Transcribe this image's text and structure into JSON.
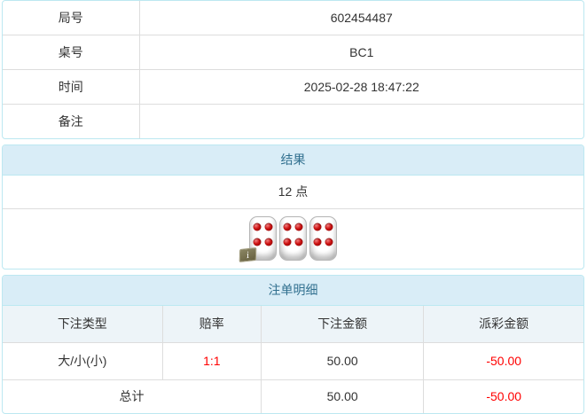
{
  "info_table": {
    "rows": [
      {
        "label": "局号",
        "value": "602454487"
      },
      {
        "label": "桌号",
        "value": "BC1"
      },
      {
        "label": "时间",
        "value": "2025-02-28 18:47:22"
      },
      {
        "label": "备注",
        "value": ""
      }
    ]
  },
  "result_panel": {
    "title": "结果",
    "points": "12 点",
    "dice": [
      4,
      4,
      4
    ],
    "info_badge": "i"
  },
  "bets_panel": {
    "title": "注单明细",
    "columns": [
      "下注类型",
      "赔率",
      "下注金额",
      "派彩金额"
    ],
    "rows": [
      {
        "type": "大/小(小)",
        "odds": "1:1",
        "bet": "50.00",
        "payout": "-50.00"
      }
    ],
    "total": {
      "label": "总计",
      "bet": "50.00",
      "payout": "-50.00"
    }
  },
  "colors": {
    "panel_border": "#bce8f1",
    "heading_bg": "#d9edf7",
    "heading_text": "#31708f",
    "row_border": "#dddddd",
    "header_row_bg": "#edf4f8",
    "text": "#333333",
    "negative": "#ff0000",
    "die_pip": "#cc1111"
  }
}
